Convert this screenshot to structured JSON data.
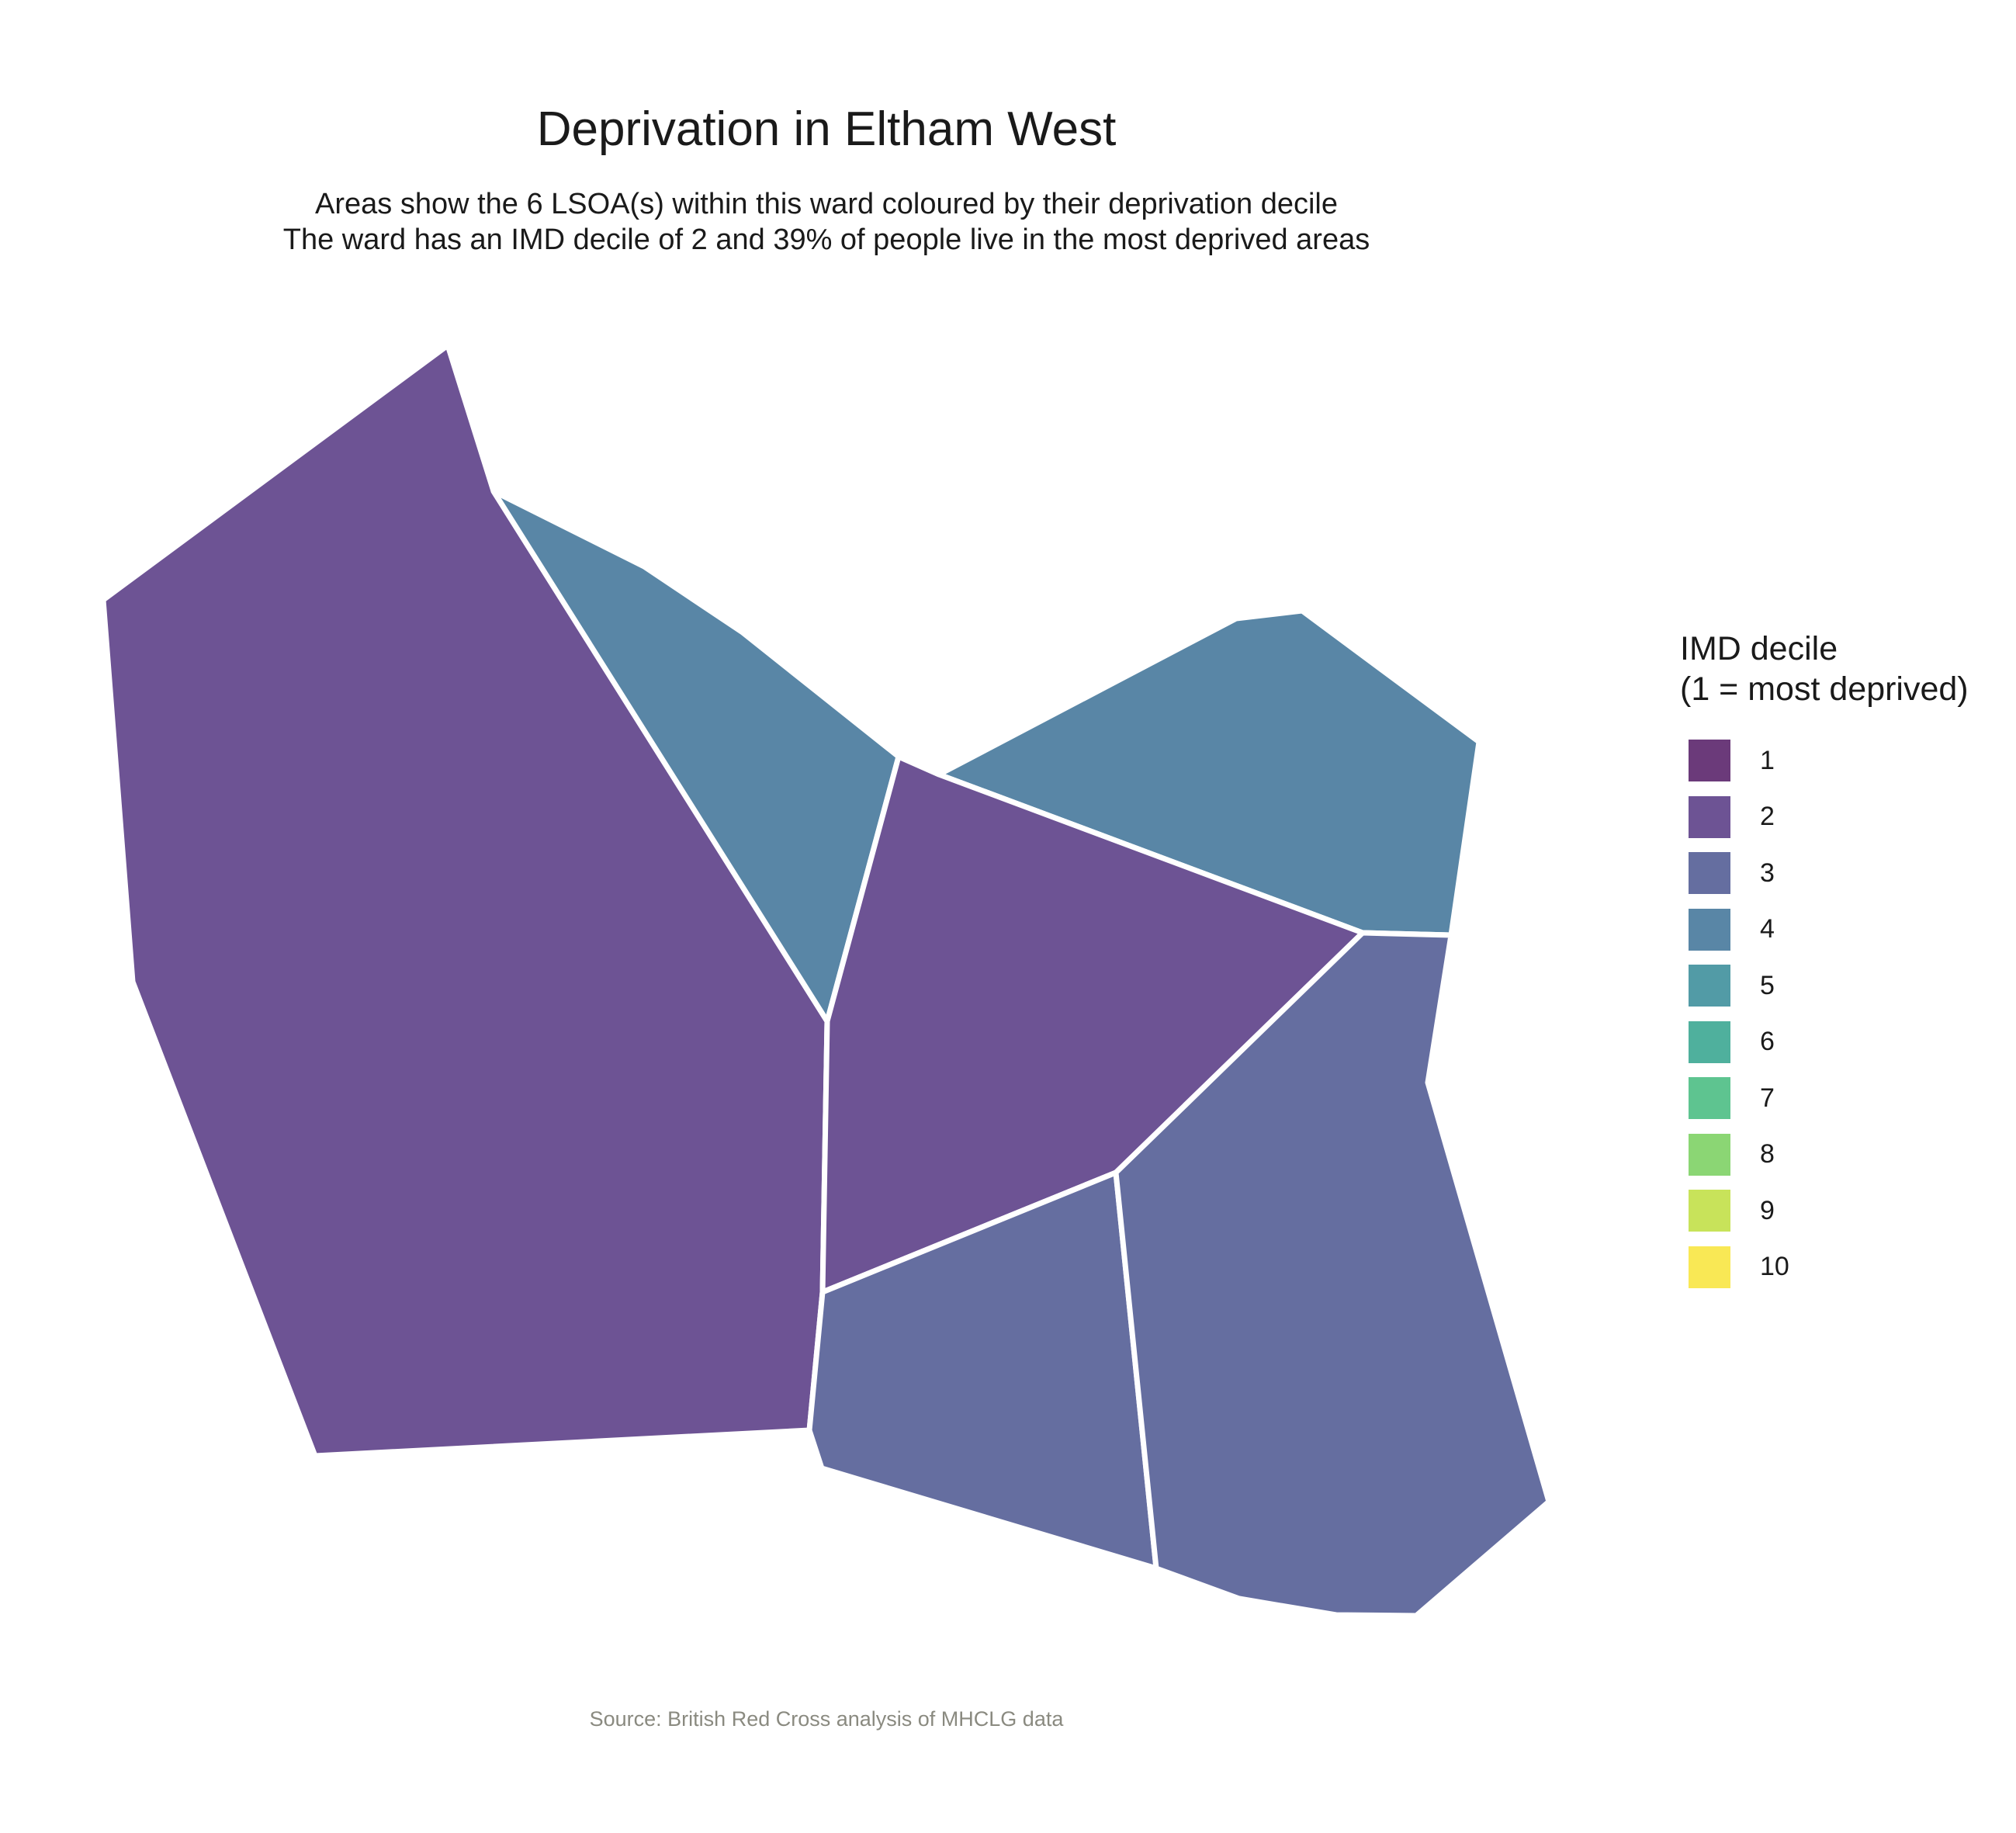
{
  "title": "Deprivation in Eltham West",
  "subtitle": {
    "line1": "Areas show the 6 LSOA(s) within this ward coloured by their deprivation decile",
    "line2": "The ward has an IMD decile of 2 and 39% of people live in the most deprived areas"
  },
  "legend": {
    "title_line1": "IMD decile",
    "title_line2": "(1 = most deprived)",
    "items": [
      {
        "label": "1",
        "color": "#6b3a7a"
      },
      {
        "label": "2",
        "color": "#6d5394"
      },
      {
        "label": "3",
        "color": "#656ea0"
      },
      {
        "label": "4",
        "color": "#5986a6"
      },
      {
        "label": "5",
        "color": "#529ba6"
      },
      {
        "label": "6",
        "color": "#4fb09d"
      },
      {
        "label": "7",
        "color": "#5ec490"
      },
      {
        "label": "8",
        "color": "#8bd674"
      },
      {
        "label": "9",
        "color": "#c8e35a"
      },
      {
        "label": "10",
        "color": "#f9e855"
      }
    ]
  },
  "areas": [
    {
      "id": "lsoa-west",
      "decile": 2
    },
    {
      "id": "lsoa-north",
      "decile": 4
    },
    {
      "id": "lsoa-northeast",
      "decile": 4
    },
    {
      "id": "lsoa-central",
      "decile": 2
    },
    {
      "id": "lsoa-south-central",
      "decile": 3
    },
    {
      "id": "lsoa-southeast",
      "decile": 3
    }
  ],
  "caption": "Source: British Red Cross analysis of MHCLG data"
}
